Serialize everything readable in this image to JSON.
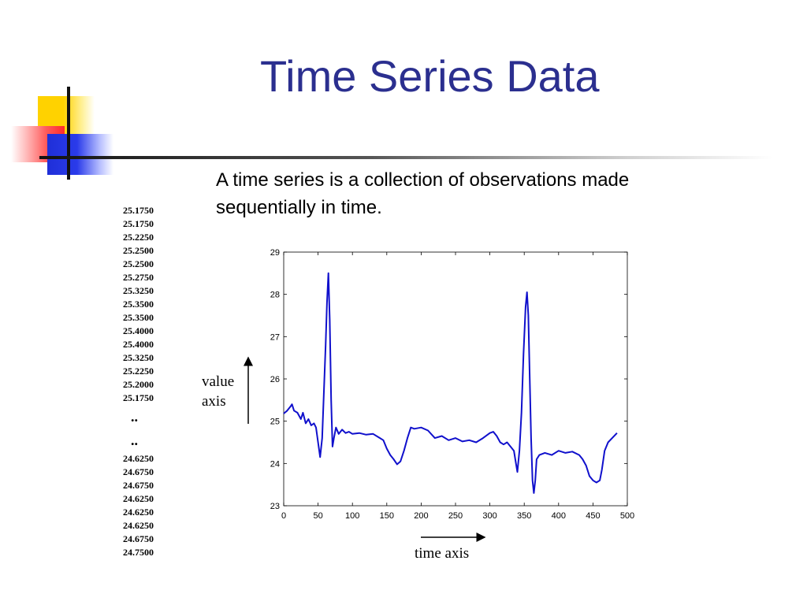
{
  "slide": {
    "title": "Time Series Data",
    "description": "A time series is a collection of observations made sequentially in time."
  },
  "data_column": {
    "top_values": [
      "25.1750",
      "25.1750",
      "25.2250",
      "25.2500",
      "25.2500",
      "25.2750",
      "25.3250",
      "25.3500",
      "25.3500",
      "25.4000",
      "25.4000",
      "25.3250",
      "25.2250",
      "25.2000",
      "25.1750"
    ],
    "ellipsis": [
      "..",
      ".."
    ],
    "bottom_values": [
      "24.6250",
      "24.6750",
      "24.6750",
      "24.6250",
      "24.6250",
      "24.6250",
      "24.6750",
      "24.7500"
    ]
  },
  "annotations": {
    "value_axis": "value axis",
    "time_axis": "time axis"
  },
  "colors": {
    "title": "#2b2f8f",
    "line": "#1010cc",
    "deco_yellow": "#ffd200",
    "deco_red": "#ff2b2b",
    "deco_blue": "#1f2fd8"
  },
  "chart_data": {
    "type": "line",
    "xlim": [
      0,
      500
    ],
    "ylim": [
      23,
      29
    ],
    "x_ticks": [
      0,
      50,
      100,
      150,
      200,
      250,
      300,
      350,
      400,
      450,
      500
    ],
    "y_ticks": [
      23,
      24,
      25,
      26,
      27,
      28,
      29
    ],
    "grid": false,
    "series": [
      {
        "points": [
          [
            0,
            25.18
          ],
          [
            5,
            25.25
          ],
          [
            10,
            25.35
          ],
          [
            12,
            25.4
          ],
          [
            15,
            25.25
          ],
          [
            20,
            25.2
          ],
          [
            25,
            25.05
          ],
          [
            28,
            25.2
          ],
          [
            32,
            24.95
          ],
          [
            36,
            25.05
          ],
          [
            40,
            24.9
          ],
          [
            44,
            24.95
          ],
          [
            47,
            24.85
          ],
          [
            50,
            24.5
          ],
          [
            53,
            24.15
          ],
          [
            56,
            24.6
          ],
          [
            58,
            25.5
          ],
          [
            61,
            26.8
          ],
          [
            63,
            27.8
          ],
          [
            65,
            28.5
          ],
          [
            67,
            27.4
          ],
          [
            69,
            25.5
          ],
          [
            71,
            24.4
          ],
          [
            73,
            24.6
          ],
          [
            76,
            24.85
          ],
          [
            80,
            24.7
          ],
          [
            85,
            24.8
          ],
          [
            90,
            24.72
          ],
          [
            95,
            24.75
          ],
          [
            100,
            24.7
          ],
          [
            110,
            24.72
          ],
          [
            120,
            24.68
          ],
          [
            130,
            24.7
          ],
          [
            140,
            24.6
          ],
          [
            145,
            24.55
          ],
          [
            150,
            24.35
          ],
          [
            155,
            24.2
          ],
          [
            160,
            24.1
          ],
          [
            165,
            23.98
          ],
          [
            170,
            24.05
          ],
          [
            175,
            24.3
          ],
          [
            180,
            24.6
          ],
          [
            185,
            24.85
          ],
          [
            190,
            24.82
          ],
          [
            200,
            24.85
          ],
          [
            210,
            24.78
          ],
          [
            220,
            24.6
          ],
          [
            230,
            24.65
          ],
          [
            240,
            24.55
          ],
          [
            250,
            24.6
          ],
          [
            260,
            24.52
          ],
          [
            270,
            24.55
          ],
          [
            280,
            24.5
          ],
          [
            290,
            24.6
          ],
          [
            300,
            24.72
          ],
          [
            305,
            24.75
          ],
          [
            310,
            24.65
          ],
          [
            315,
            24.5
          ],
          [
            320,
            24.45
          ],
          [
            325,
            24.5
          ],
          [
            330,
            24.4
          ],
          [
            335,
            24.3
          ],
          [
            338,
            24.0
          ],
          [
            340,
            23.8
          ],
          [
            343,
            24.3
          ],
          [
            346,
            25.2
          ],
          [
            349,
            26.6
          ],
          [
            352,
            27.7
          ],
          [
            354,
            28.05
          ],
          [
            356,
            27.5
          ],
          [
            358,
            26.0
          ],
          [
            360,
            24.6
          ],
          [
            362,
            23.6
          ],
          [
            364,
            23.3
          ],
          [
            366,
            23.6
          ],
          [
            368,
            24.1
          ],
          [
            372,
            24.2
          ],
          [
            380,
            24.25
          ],
          [
            390,
            24.2
          ],
          [
            400,
            24.3
          ],
          [
            410,
            24.25
          ],
          [
            420,
            24.28
          ],
          [
            430,
            24.2
          ],
          [
            435,
            24.1
          ],
          [
            440,
            23.95
          ],
          [
            445,
            23.7
          ],
          [
            450,
            23.6
          ],
          [
            455,
            23.55
          ],
          [
            460,
            23.6
          ],
          [
            463,
            23.85
          ],
          [
            467,
            24.3
          ],
          [
            472,
            24.5
          ],
          [
            478,
            24.6
          ],
          [
            485,
            24.72
          ]
        ]
      }
    ]
  }
}
